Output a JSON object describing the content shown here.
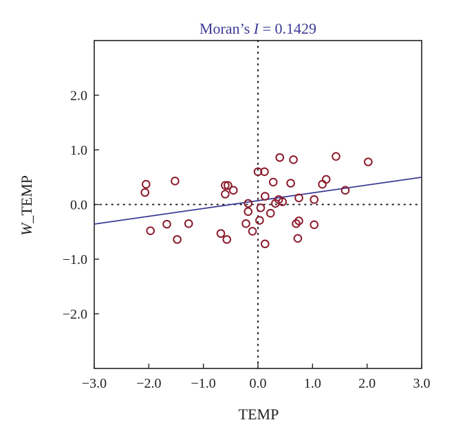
{
  "chart_data": {
    "type": "scatter",
    "title_prefix": "Moran’s ",
    "title_italic": "I",
    "title_suffix": " = 0.1429",
    "xlabel": "TEMP",
    "ylabel_italic": "W",
    "ylabel_rest": "_TEMP",
    "xlim": [
      -3.0,
      3.0
    ],
    "ylim": [
      -3.0,
      3.0
    ],
    "xticks": [
      -3.0,
      -2.0,
      -1.0,
      0.0,
      1.0,
      2.0,
      3.0
    ],
    "xtick_labels": [
      "−3.0",
      "−2.0",
      "−1.0",
      "0.0",
      "1.0",
      "2.0",
      "3.0"
    ],
    "yticks": [
      -2.0,
      -1.0,
      0.0,
      1.0,
      2.0
    ],
    "ytick_labels": [
      "−2.0",
      "−1.0",
      "0.0",
      "1.0",
      "2.0"
    ],
    "reference_lines": {
      "x": 0,
      "y": 0,
      "style": "dotted"
    },
    "regression_line": {
      "slope": 0.1429,
      "intercept": 0.07
    },
    "colors": {
      "title": "#3d3a96",
      "regression": "#3d3a96",
      "points": "#8b1a2b",
      "axes": "#231f20"
    },
    "points": [
      {
        "x": -2.05,
        "y": 0.37
      },
      {
        "x": -2.07,
        "y": 0.22
      },
      {
        "x": -1.97,
        "y": -0.48
      },
      {
        "x": -1.52,
        "y": 0.43
      },
      {
        "x": -1.48,
        "y": -0.64
      },
      {
        "x": -1.67,
        "y": -0.36
      },
      {
        "x": -1.27,
        "y": -0.35
      },
      {
        "x": -0.68,
        "y": -0.53
      },
      {
        "x": -0.6,
        "y": 0.35
      },
      {
        "x": -0.55,
        "y": 0.35
      },
      {
        "x": -0.45,
        "y": 0.26
      },
      {
        "x": -0.6,
        "y": 0.19
      },
      {
        "x": -0.57,
        "y": -0.64
      },
      {
        "x": -0.22,
        "y": -0.35
      },
      {
        "x": -0.18,
        "y": -0.13
      },
      {
        "x": -0.18,
        "y": 0.02
      },
      {
        "x": -0.1,
        "y": -0.49
      },
      {
        "x": 0.0,
        "y": 0.6
      },
      {
        "x": 0.03,
        "y": -0.29
      },
      {
        "x": 0.05,
        "y": -0.06
      },
      {
        "x": 0.12,
        "y": 0.6
      },
      {
        "x": 0.13,
        "y": 0.15
      },
      {
        "x": 0.13,
        "y": -0.72
      },
      {
        "x": 0.23,
        "y": -0.16
      },
      {
        "x": 0.28,
        "y": 0.41
      },
      {
        "x": 0.32,
        "y": 0.02
      },
      {
        "x": 0.38,
        "y": 0.09
      },
      {
        "x": 0.4,
        "y": 0.86
      },
      {
        "x": 0.45,
        "y": 0.05
      },
      {
        "x": 0.6,
        "y": 0.39
      },
      {
        "x": 0.65,
        "y": 0.82
      },
      {
        "x": 0.7,
        "y": -0.35
      },
      {
        "x": 0.75,
        "y": -0.3
      },
      {
        "x": 0.73,
        "y": -0.62
      },
      {
        "x": 0.75,
        "y": 0.12
      },
      {
        "x": 1.03,
        "y": 0.09
      },
      {
        "x": 1.03,
        "y": -0.37
      },
      {
        "x": 1.18,
        "y": 0.37
      },
      {
        "x": 1.25,
        "y": 0.46
      },
      {
        "x": 1.43,
        "y": 0.88
      },
      {
        "x": 1.6,
        "y": 0.26
      },
      {
        "x": 2.02,
        "y": 0.78
      }
    ]
  }
}
